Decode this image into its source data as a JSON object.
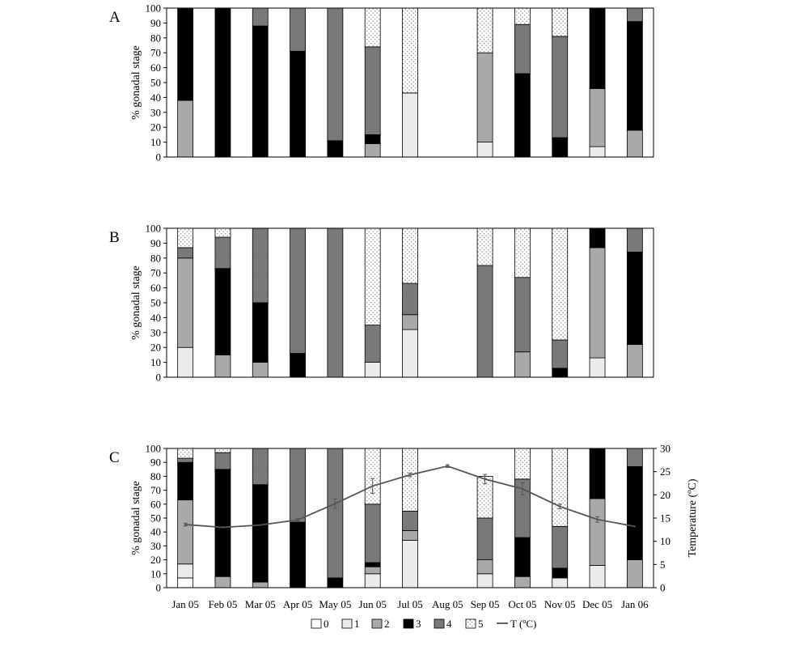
{
  "chart_data": [
    {
      "type": "bar",
      "stacked": true,
      "panel_label": "A",
      "ylabel": "% gonadal stage",
      "ylim": [
        0,
        100
      ],
      "y_ticks": [
        "0",
        "10",
        "20",
        "30",
        "40",
        "50",
        "60",
        "70",
        "80",
        "90",
        "100"
      ],
      "categories": [
        "Jan 05",
        "Feb 05",
        "Mar 05",
        "Apr 05",
        "May 05",
        "Jun 05",
        "Jul 05",
        "Aug 05",
        "Sep 05",
        "Oct 05",
        "Nov 05",
        "Dec 05",
        "Jan 06"
      ],
      "series": [
        {
          "name": "0",
          "values": [
            0,
            0,
            0,
            0,
            0,
            0,
            0,
            0,
            0,
            0,
            0,
            0,
            0
          ]
        },
        {
          "name": "1",
          "values": [
            0,
            0,
            0,
            0,
            0,
            0,
            43,
            0,
            10,
            0,
            0,
            7,
            0
          ]
        },
        {
          "name": "2",
          "values": [
            38,
            0,
            0,
            0,
            0,
            9,
            0,
            0,
            60,
            0,
            0,
            39,
            18
          ]
        },
        {
          "name": "3",
          "values": [
            62,
            100,
            88,
            71,
            11,
            6,
            0,
            0,
            0,
            56,
            13,
            54,
            73
          ]
        },
        {
          "name": "4",
          "values": [
            0,
            0,
            12,
            29,
            89,
            59,
            0,
            0,
            0,
            33,
            68,
            0,
            9
          ]
        },
        {
          "name": "5",
          "values": [
            0,
            0,
            0,
            0,
            0,
            26,
            57,
            0,
            30,
            11,
            19,
            0,
            0
          ]
        }
      ]
    },
    {
      "type": "bar",
      "stacked": true,
      "panel_label": "B",
      "ylabel": "% gonadal stage",
      "ylim": [
        0,
        100
      ],
      "y_ticks": [
        "0",
        "10",
        "20",
        "30",
        "40",
        "50",
        "60",
        "70",
        "80",
        "90",
        "100"
      ],
      "categories": [
        "Jan 05",
        "Feb 05",
        "Mar 05",
        "Apr 05",
        "May 05",
        "Jun 05",
        "Jul 05",
        "Aug 05",
        "Sep 05",
        "Oct 05",
        "Nov 05",
        "Dec 05",
        "Jan 06"
      ],
      "series": [
        {
          "name": "0",
          "values": [
            0,
            0,
            0,
            0,
            0,
            0,
            0,
            0,
            0,
            0,
            0,
            0,
            0
          ]
        },
        {
          "name": "1",
          "values": [
            20,
            0,
            0,
            0,
            0,
            10,
            32,
            0,
            0,
            0,
            0,
            13,
            0
          ]
        },
        {
          "name": "2",
          "values": [
            60,
            15,
            10,
            0,
            0,
            0,
            10,
            0,
            0,
            17,
            0,
            74,
            22
          ]
        },
        {
          "name": "3",
          "values": [
            0,
            58,
            40,
            16,
            0,
            0,
            0,
            0,
            0,
            0,
            6,
            13,
            62
          ]
        },
        {
          "name": "4",
          "values": [
            7,
            21,
            50,
            84,
            100,
            25,
            21,
            0,
            75,
            50,
            19,
            0,
            16
          ]
        },
        {
          "name": "5",
          "values": [
            13,
            6,
            0,
            0,
            0,
            65,
            37,
            0,
            25,
            33,
            75,
            0,
            0
          ]
        }
      ]
    },
    {
      "type": "bar",
      "stacked": true,
      "panel_label": "C",
      "ylabel": "% gonadal stage",
      "y2label": "Temperature (ºC)",
      "ylim": [
        0,
        100
      ],
      "y2lim": [
        0,
        30
      ],
      "y_ticks": [
        "0",
        "10",
        "20",
        "30",
        "40",
        "50",
        "60",
        "70",
        "80",
        "90",
        "100"
      ],
      "y2_ticks": [
        "0",
        "5",
        "10",
        "15",
        "20",
        "25",
        "30"
      ],
      "categories": [
        "Jan 05",
        "Feb 05",
        "Mar 05",
        "Apr 05",
        "May 05",
        "Jun 05",
        "Jul 05",
        "Aug 05",
        "Sep 05",
        "Oct 05",
        "Nov 05",
        "Dec 05",
        "Jan 06"
      ],
      "series": [
        {
          "name": "0",
          "values": [
            7,
            0,
            0,
            0,
            0,
            0,
            0,
            0,
            0,
            0,
            0,
            0,
            0
          ]
        },
        {
          "name": "1",
          "values": [
            10,
            0,
            0,
            0,
            0,
            10,
            34,
            0,
            10,
            0,
            7,
            16,
            0
          ]
        },
        {
          "name": "2",
          "values": [
            46,
            8,
            4,
            0,
            0,
            5,
            7,
            0,
            10,
            8,
            0,
            48,
            20
          ]
        },
        {
          "name": "3",
          "values": [
            27,
            77,
            70,
            47,
            7,
            3,
            0,
            0,
            0,
            28,
            7,
            36,
            67
          ]
        },
        {
          "name": "4",
          "values": [
            3,
            12,
            26,
            53,
            93,
            42,
            14,
            0,
            30,
            42,
            30,
            0,
            13
          ]
        },
        {
          "name": "5",
          "values": [
            7,
            3,
            0,
            0,
            0,
            40,
            45,
            0,
            30,
            22,
            56,
            0,
            0
          ]
        }
      ],
      "line_series": {
        "name": "T (ºC)",
        "values": [
          13.6,
          13.0,
          13.5,
          14.6,
          18.1,
          21.9,
          24.3,
          26.2,
          23.4,
          21.3,
          17.5,
          14.7,
          13.2
        ],
        "errors": [
          0.3,
          0,
          0,
          0.3,
          1.0,
          1.6,
          0.4,
          0.3,
          1.0,
          1.3,
          0.5,
          0.6,
          0
        ]
      }
    }
  ],
  "legend": {
    "items": [
      {
        "label": "0",
        "fill": "#ffffff"
      },
      {
        "label": "1",
        "fill": "#ebebeb"
      },
      {
        "label": "2",
        "fill": "#a9a9a9"
      },
      {
        "label": "3",
        "fill": "#000000"
      },
      {
        "label": "4",
        "fill": "#7a7a7a"
      },
      {
        "label": "5",
        "fill": "dots"
      }
    ],
    "line_label": "T (ºC)"
  },
  "colors": {
    "stage_0": "#ffffff",
    "stage_1": "#ebebeb",
    "stage_2": "#a9a9a9",
    "stage_3": "#000000",
    "stage_4": "#7a7a7a",
    "stage_5_dots": "#8a8a8a",
    "temperature_line": "#555555"
  }
}
